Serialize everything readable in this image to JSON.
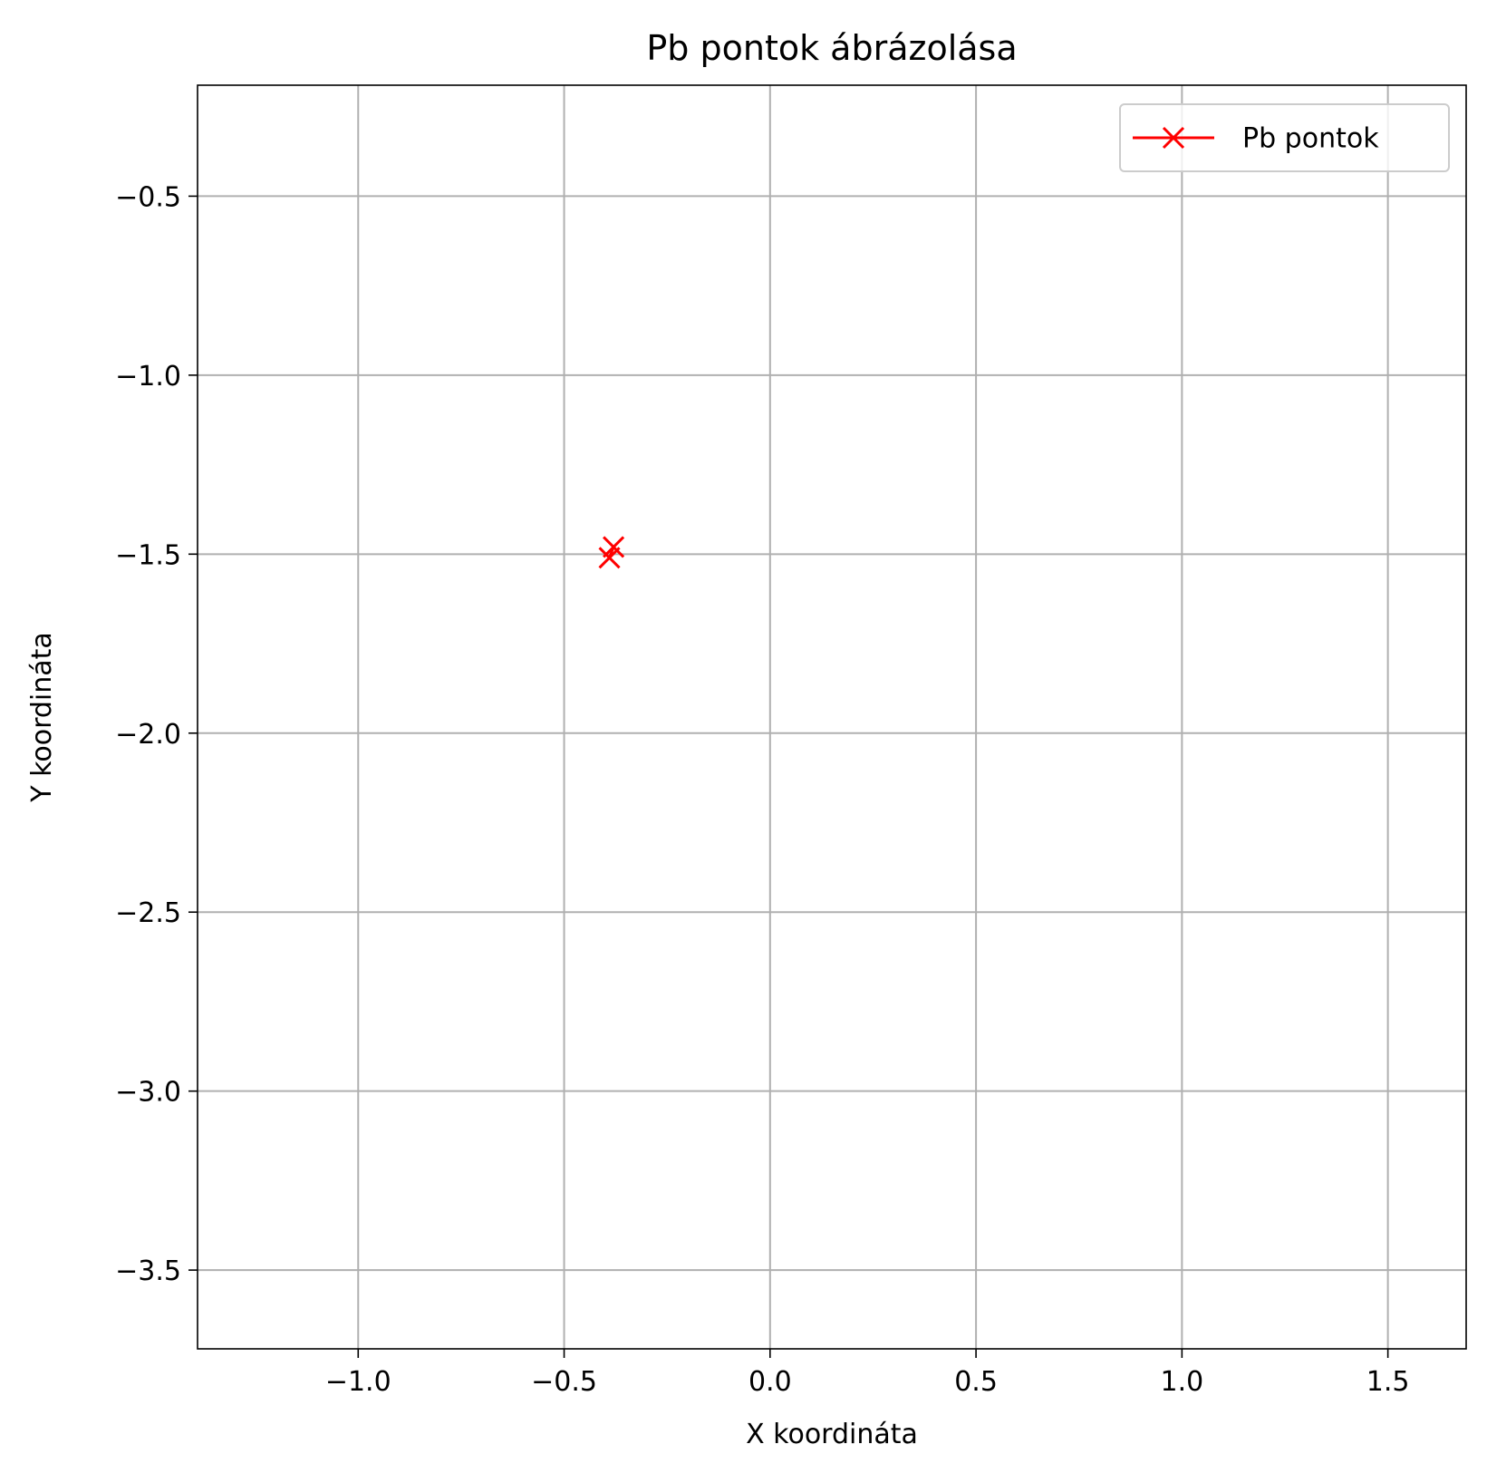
{
  "chart_data": {
    "type": "line",
    "title": "Pb pontok ábrázolása",
    "xlabel": "X koordináta",
    "ylabel": "Y koordináta",
    "xlim": [
      -1.39,
      1.69
    ],
    "ylim": [
      -3.72,
      -0.19
    ],
    "xticks": [
      -1.0,
      -0.5,
      0.0,
      0.5,
      1.0,
      1.5
    ],
    "xtick_labels": [
      "−1.0",
      "−0.5",
      "0.0",
      "0.5",
      "1.0",
      "1.5"
    ],
    "yticks": [
      -0.5,
      -1.0,
      -1.5,
      -2.0,
      -2.5,
      -3.0,
      -3.5
    ],
    "ytick_labels": [
      "−0.5",
      "−1.0",
      "−1.5",
      "−2.0",
      "−2.5",
      "−3.0",
      "−3.5"
    ],
    "grid": true,
    "legend_position": "top-right",
    "series": [
      {
        "name": "Pb pontok",
        "color": "#ff0000",
        "marker": "x",
        "line": "solid",
        "points": [
          {
            "x": -0.38,
            "y": -1.48
          },
          {
            "x": -0.39,
            "y": -1.51
          }
        ]
      }
    ]
  }
}
